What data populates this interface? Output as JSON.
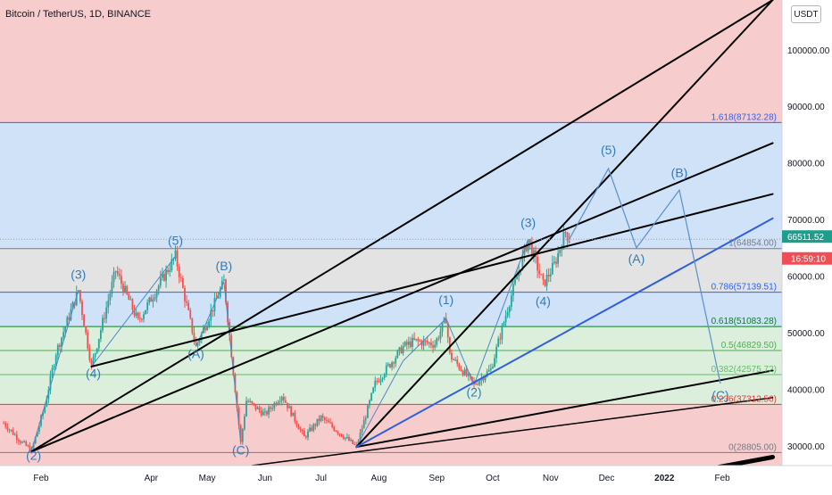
{
  "header": {
    "symbol": "Bitcoin / TetherUS, 1D, BINANCE",
    "currency_button": "USDT"
  },
  "price_badge": {
    "price": "66511.52",
    "countdown": "16:59:10"
  },
  "colors": {
    "red_zone": "#f7cccc",
    "blue_zone": "#cfe2f7",
    "gray_zone": "#e3e3e3",
    "green_zone": "#dcefdc",
    "bull_candle": "#26a69a",
    "bear_candle": "#ef5350",
    "wave_label": "#2f7bbf",
    "blue_trendline": "#2f5fe0",
    "badge_green": "#1d9e8c",
    "badge_red": "#f04e55"
  },
  "chart_data": {
    "type": "candlestick",
    "x_axis": {
      "tick_labels": [
        "Feb",
        "Apr",
        "May",
        "Jun",
        "Jul",
        "Aug",
        "Sep",
        "Oct",
        "Nov",
        "Dec",
        "2022",
        "Feb"
      ],
      "tick_dates": [
        "2021-02-01",
        "2021-04-01",
        "2021-05-01",
        "2021-06-01",
        "2021-07-01",
        "2021-08-01",
        "2021-09-01",
        "2021-10-01",
        "2021-11-01",
        "2021-12-01",
        "2022-01-01",
        "2022-02-01"
      ],
      "range": [
        "2021-01-10",
        "2022-03-05"
      ]
    },
    "y_axis": {
      "tick_values": [
        30000,
        40000,
        50000,
        60000,
        70000,
        80000,
        90000,
        100000
      ],
      "tick_labels": [
        "30000.00",
        "40000.00",
        "50000.00",
        "60000.00",
        "70000.00",
        "80000.00",
        "90000.00",
        "100000.00"
      ],
      "range": [
        26500,
        108800
      ]
    },
    "fib_levels": [
      {
        "ratio": "1.618",
        "price": 87132.28,
        "label": "1.618(87132.28)",
        "color": "#2962ff"
      },
      {
        "ratio": "1",
        "price": 64854.0,
        "label": "1(64854.00)",
        "color": "#787b86"
      },
      {
        "ratio": "0.786",
        "price": 57139.51,
        "label": "0.786(57139.51)",
        "color": "#2962ff"
      },
      {
        "ratio": "0.618",
        "price": 51083.28,
        "label": "0.618(51083.28)",
        "color": "#087f23"
      },
      {
        "ratio": "0.5",
        "price": 46829.5,
        "label": "0.5(46829.50)",
        "color": "#4caf50"
      },
      {
        "ratio": "0.382",
        "price": 42575.72,
        "label": "0.382(42575.72)",
        "color": "#66bb6a"
      },
      {
        "ratio": "0.236",
        "price": 37312.56,
        "label": "0.236(37312.56)",
        "color": "#e53935"
      },
      {
        "ratio": "0",
        "price": 28805.0,
        "label": "0(28805.00)",
        "color": "#787b86"
      }
    ],
    "price_path": [
      [
        "2021-01-12",
        34000
      ],
      [
        "2021-01-22",
        30500
      ],
      [
        "2021-01-27",
        29200
      ],
      [
        "2021-02-03",
        37000
      ],
      [
        "2021-02-09",
        46500
      ],
      [
        "2021-02-21",
        57500
      ],
      [
        "2021-02-28",
        44000
      ],
      [
        "2021-03-13",
        61000
      ],
      [
        "2021-03-25",
        52000
      ],
      [
        "2021-04-14",
        63500
      ],
      [
        "2021-04-25",
        47500
      ],
      [
        "2021-05-10",
        59000
      ],
      [
        "2021-05-19",
        30500
      ],
      [
        "2021-05-22",
        38000
      ],
      [
        "2021-06-01",
        35500
      ],
      [
        "2021-06-10",
        39000
      ],
      [
        "2021-06-22",
        31500
      ],
      [
        "2021-07-01",
        35000
      ],
      [
        "2021-07-20",
        29800
      ],
      [
        "2021-07-30",
        41000
      ],
      [
        "2021-08-14",
        47500
      ],
      [
        "2021-08-20",
        48500
      ],
      [
        "2021-08-31",
        48000
      ],
      [
        "2021-09-06",
        52500
      ],
      [
        "2021-09-08",
        46000
      ],
      [
        "2021-09-21",
        40800
      ],
      [
        "2021-09-30",
        43500
      ],
      [
        "2021-10-10",
        55500
      ],
      [
        "2021-10-20",
        66500
      ],
      [
        "2021-10-28",
        58500
      ],
      [
        "2021-11-03",
        62000
      ],
      [
        "2021-11-09",
        67800
      ],
      [
        "2021-11-11",
        66511.52
      ]
    ],
    "projection_path": [
      [
        "2021-11-11",
        66511.52
      ],
      [
        "2021-12-02",
        79000
      ],
      [
        "2021-12-17",
        65000
      ],
      [
        "2022-01-09",
        75200
      ],
      [
        "2022-01-31",
        41000
      ]
    ],
    "wave_labels": [
      {
        "text": "(2)",
        "date": "2021-01-28",
        "price": 27500
      },
      {
        "text": "(3)",
        "date": "2021-02-21",
        "price": 59500
      },
      {
        "text": "(4)",
        "date": "2021-03-01",
        "price": 42000
      },
      {
        "text": "(5)",
        "date": "2021-04-14",
        "price": 65500
      },
      {
        "text": "(A)",
        "date": "2021-04-25",
        "price": 45500
      },
      {
        "text": "(B)",
        "date": "2021-05-10",
        "price": 61000
      },
      {
        "text": "(C)",
        "date": "2021-05-19",
        "price": 28500
      },
      {
        "text": "(1)",
        "date": "2021-09-06",
        "price": 55000
      },
      {
        "text": "(2)",
        "date": "2021-09-21",
        "price": 38700
      },
      {
        "text": "(3)",
        "date": "2021-10-20",
        "price": 68700
      },
      {
        "text": "(4)",
        "date": "2021-10-28",
        "price": 54800
      },
      {
        "text": "(5)",
        "date": "2021-12-02",
        "price": 81500
      },
      {
        "text": "(A)",
        "date": "2021-12-17",
        "price": 62300
      },
      {
        "text": "(B)",
        "date": "2022-01-09",
        "price": 77500
      },
      {
        "text": "(C)",
        "date": "2022-01-31",
        "price": 38200
      }
    ],
    "trendlines": [
      {
        "from": [
          "2021-01-27",
          29000
        ],
        "to": [
          "2022-02-28",
          83500
        ],
        "color": "#000000",
        "width": 2
      },
      {
        "from": [
          "2021-01-27",
          29000
        ],
        "to": [
          "2022-02-28",
          108800
        ],
        "color": "#000000",
        "width": 2
      },
      {
        "from": [
          "2021-07-20",
          29800
        ],
        "to": [
          "2022-02-28",
          108800
        ],
        "color": "#000000",
        "width": 2
      },
      {
        "from": [
          "2021-02-28",
          44000
        ],
        "to": [
          "2022-02-28",
          74500
        ],
        "color": "#000000",
        "width": 2
      },
      {
        "from": [
          "2021-07-20",
          29800
        ],
        "to": [
          "2022-02-28",
          43300
        ],
        "color": "#000000",
        "width": 2
      },
      {
        "from": [
          "2021-05-25",
          26500
        ],
        "to": [
          "2022-02-28",
          38500
        ],
        "color": "#000000",
        "width": 1.5
      },
      {
        "from": [
          "2021-11-05",
          21000
        ],
        "to": [
          "2022-02-28",
          28000
        ],
        "color": "#000000",
        "width": 5
      },
      {
        "from": [
          "2021-07-20",
          29800
        ],
        "to": [
          "2022-02-28",
          70200
        ],
        "color": "#2f5fe0",
        "width": 2
      }
    ],
    "sub_wave_paths": [
      [
        [
          "2021-01-27",
          29200
        ],
        [
          "2021-02-21",
          57500
        ]
      ],
      [
        [
          "2021-02-28",
          44000
        ],
        [
          "2021-04-14",
          63500
        ]
      ],
      [
        [
          "2021-04-25",
          47500
        ],
        [
          "2021-05-10",
          59000
        ]
      ],
      [
        [
          "2021-05-10",
          59000
        ],
        [
          "2021-05-19",
          30500
        ]
      ],
      [
        [
          "2021-07-20",
          29800
        ],
        [
          "2021-08-14",
          45000
        ]
      ],
      [
        [
          "2021-08-14",
          45000
        ],
        [
          "2021-09-06",
          52500
        ]
      ],
      [
        [
          "2021-09-06",
          52500
        ],
        [
          "2021-09-21",
          40800
        ]
      ],
      [
        [
          "2021-09-21",
          40800
        ],
        [
          "2021-10-20",
          66500
        ]
      ]
    ]
  }
}
